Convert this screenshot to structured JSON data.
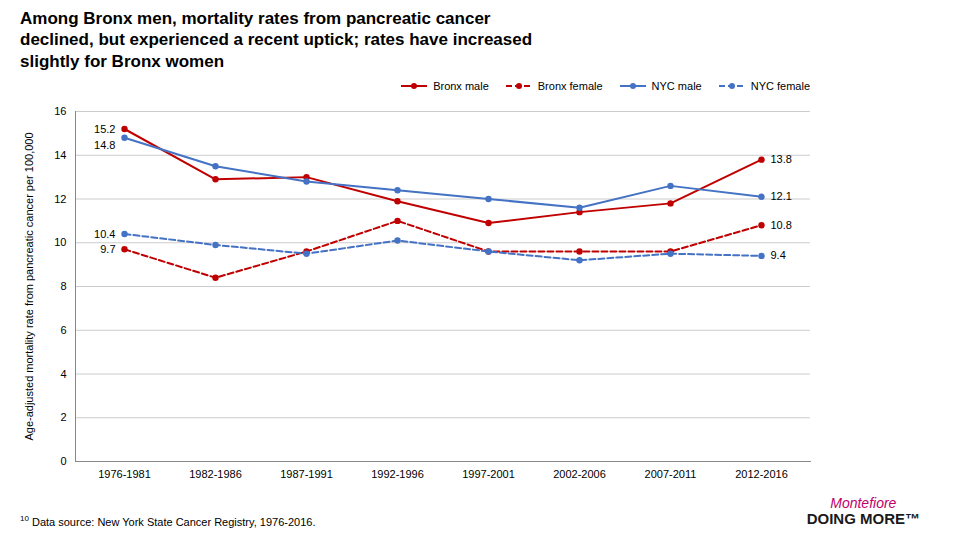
{
  "chart_data": {
    "type": "line",
    "title": "Among Bronx men, mortality rates from pancreatic cancer\ndeclined, but experienced a recent uptick; rates have increased\nslightly for Bronx women",
    "y_label": "Age-adjusted mortality rate from pancreatic cancer per 100,000",
    "categories": [
      "1976-1981",
      "1982-1986",
      "1987-1991",
      "1992-1996",
      "1997-2001",
      "2002-2006",
      "2007-2011",
      "2012-2016"
    ],
    "series": [
      {
        "name": "Bronx male",
        "color": "#c00000",
        "line_style": "solid",
        "marker": "circle",
        "values": [
          15.2,
          12.9,
          13.0,
          11.9,
          10.9,
          11.4,
          11.8,
          13.8
        ]
      },
      {
        "name": "Bronx female",
        "color": "#c00000",
        "line_style": "dashed",
        "marker": "circle",
        "values": [
          9.7,
          8.4,
          9.6,
          11.0,
          9.6,
          9.6,
          9.6,
          10.8
        ]
      },
      {
        "name": "NYC male",
        "color": "#4472c4",
        "line_style": "solid",
        "marker": "circle",
        "values": [
          14.8,
          13.5,
          12.8,
          12.4,
          12.0,
          11.6,
          12.6,
          12.1
        ]
      },
      {
        "name": "NYC female",
        "color": "#4472c4",
        "line_style": "dashed",
        "marker": "circle",
        "values": [
          10.4,
          9.9,
          9.5,
          10.1,
          9.6,
          9.2,
          9.5,
          9.4
        ]
      }
    ],
    "annotations": [
      {
        "text": "15.2",
        "x": "1976-1981",
        "y": 15.2
      },
      {
        "text": "14.8",
        "x": "1976-1981",
        "y": 14.8
      },
      {
        "text": "10.4",
        "x": "1976-1981",
        "y": 10.4
      },
      {
        "text": "9.7",
        "x": "1976-1981",
        "y": 9.7
      },
      {
        "text": "13.8",
        "x": "2012-2016",
        "y": 13.8
      },
      {
        "text": "12.1",
        "x": "2012-2016",
        "y": 12.1
      },
      {
        "text": "10.8",
        "x": "2012-2016",
        "y": 10.8
      },
      {
        "text": "9.4",
        "x": "2012-2016",
        "y": 9.4
      }
    ],
    "ylim": [
      0,
      16
    ],
    "yticks": [
      0,
      2,
      4,
      6,
      8,
      10,
      12,
      14,
      16
    ],
    "grid": true,
    "legend": "top",
    "footnote_marker": "10",
    "footnote": "Data source: New York State Cancer Registry, 1976-2016.",
    "branding": [
      "Montefiore",
      "DOING MORE™"
    ]
  }
}
